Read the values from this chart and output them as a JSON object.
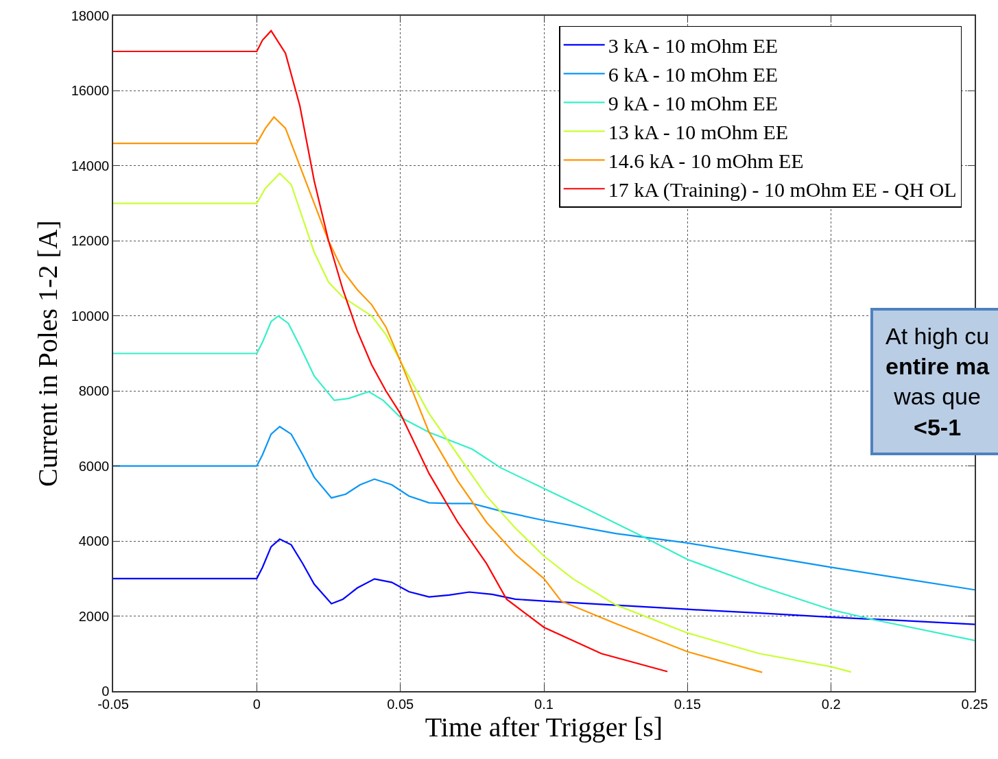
{
  "chart_data": {
    "type": "line",
    "xlabel": "Time after Trigger [s]",
    "ylabel": "Current in Poles 1-2 [A]",
    "xlim": [
      -0.05,
      0.25
    ],
    "ylim": [
      0,
      18000
    ],
    "xticks": [
      -0.05,
      0,
      0.05,
      0.1,
      0.15,
      0.2,
      0.25
    ],
    "yticks": [
      0,
      2000,
      4000,
      6000,
      8000,
      10000,
      12000,
      14000,
      16000,
      18000
    ],
    "grid": true,
    "legend": "top right",
    "line_style": "solid",
    "series": [
      {
        "name": "3 kA - 10 mOhm EE",
        "color": "#0000ff",
        "x": [
          -0.05,
          0,
          0.002,
          0.005,
          0.008,
          0.012,
          0.016,
          0.02,
          0.026,
          0.03,
          0.035,
          0.041,
          0.047,
          0.053,
          0.06,
          0.067,
          0.074,
          0.082,
          0.09,
          0.1,
          0.125,
          0.15,
          0.175,
          0.2,
          0.225,
          0.25
        ],
        "values": [
          3000,
          3000,
          3300,
          3850,
          4050,
          3900,
          3400,
          2850,
          2330,
          2450,
          2750,
          2990,
          2900,
          2650,
          2510,
          2560,
          2640,
          2580,
          2450,
          2400,
          2290,
          2180,
          2080,
          1970,
          1880,
          1780
        ]
      },
      {
        "name": "6 kA - 10 mOhm EE",
        "color": "#0a96f5",
        "x": [
          -0.05,
          0,
          0.002,
          0.005,
          0.008,
          0.012,
          0.016,
          0.02,
          0.026,
          0.031,
          0.036,
          0.041,
          0.047,
          0.053,
          0.06,
          0.068,
          0.075,
          0.085,
          0.1,
          0.125,
          0.15,
          0.175,
          0.2,
          0.225,
          0.25
        ],
        "values": [
          6000,
          6000,
          6300,
          6850,
          7050,
          6850,
          6300,
          5700,
          5150,
          5250,
          5500,
          5650,
          5500,
          5200,
          5020,
          5000,
          5000,
          4800,
          4550,
          4200,
          3950,
          3620,
          3300,
          3000,
          2700
        ]
      },
      {
        "name": "9 kA - 10 mOhm EE",
        "color": "#35f0c8",
        "x": [
          -0.05,
          0,
          0.002,
          0.005,
          0.0075,
          0.011,
          0.015,
          0.02,
          0.027,
          0.032,
          0.039,
          0.044,
          0.05,
          0.06,
          0.075,
          0.085,
          0.1,
          0.115,
          0.135,
          0.15,
          0.175,
          0.2,
          0.215,
          0.25
        ],
        "values": [
          9000,
          9000,
          9300,
          9850,
          10000,
          9800,
          9200,
          8400,
          7750,
          7800,
          7980,
          7750,
          7300,
          6900,
          6450,
          5950,
          5400,
          4850,
          4100,
          3510,
          2800,
          2170,
          1900,
          1350
        ]
      },
      {
        "name": "13 kA - 10 mOhm EE",
        "color": "#c8ff32",
        "x": [
          -0.05,
          0,
          0.003,
          0.008,
          0.012,
          0.016,
          0.02,
          0.025,
          0.03,
          0.035,
          0.04,
          0.045,
          0.05,
          0.06,
          0.07,
          0.08,
          0.09,
          0.1,
          0.11,
          0.125,
          0.15,
          0.175,
          0.2,
          0.207
        ],
        "values": [
          13000,
          13000,
          13400,
          13800,
          13500,
          12600,
          11700,
          10900,
          10500,
          10250,
          10000,
          9500,
          8800,
          7400,
          6300,
          5200,
          4350,
          3600,
          3000,
          2300,
          1550,
          1000,
          650,
          510
        ]
      },
      {
        "name": "14.6 kA - 10 mOhm EE",
        "color": "#ff9600",
        "x": [
          -0.05,
          0,
          0.003,
          0.006,
          0.01,
          0.015,
          0.02,
          0.025,
          0.03,
          0.035,
          0.04,
          0.045,
          0.05,
          0.06,
          0.07,
          0.08,
          0.09,
          0.1,
          0.106,
          0.125,
          0.15,
          0.176
        ],
        "values": [
          14600,
          14600,
          15000,
          15300,
          15000,
          14000,
          13000,
          12000,
          11200,
          10700,
          10300,
          9700,
          8800,
          6900,
          5600,
          4500,
          3650,
          3000,
          2400,
          1800,
          1050,
          500
        ]
      },
      {
        "name": "17 kA (Training) - 10 mOhm EE - QH OL",
        "color": "#ff0000",
        "x": [
          -0.05,
          0,
          0.002,
          0.005,
          0.01,
          0.015,
          0.02,
          0.025,
          0.03,
          0.035,
          0.04,
          0.045,
          0.05,
          0.06,
          0.07,
          0.08,
          0.087,
          0.1,
          0.12,
          0.143
        ],
        "values": [
          17050,
          17050,
          17350,
          17600,
          17000,
          15600,
          13600,
          12000,
          10700,
          9600,
          8700,
          8000,
          7400,
          5800,
          4500,
          3400,
          2450,
          1700,
          1000,
          520
        ]
      }
    ],
    "annotations": [
      "At high cu\nentire ma\nwas que\n<5-1"
    ]
  }
}
